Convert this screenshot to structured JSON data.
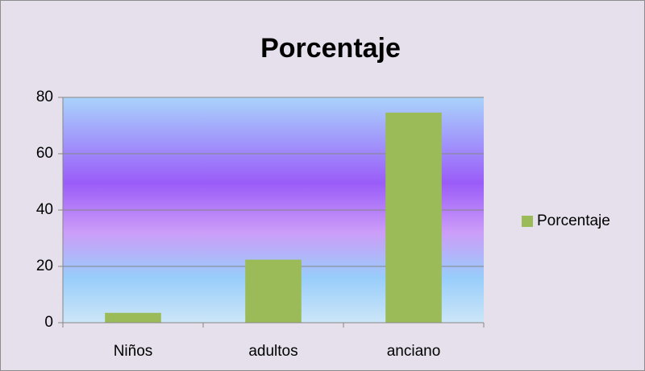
{
  "chart_data": {
    "type": "bar",
    "title": "Porcentaje",
    "categories": [
      "Niños",
      "adultos",
      "anciano"
    ],
    "series": [
      {
        "name": "Porcentaje",
        "color": "#9bbb59",
        "values": [
          3.5,
          22.4,
          74.6
        ]
      }
    ],
    "ylim": [
      0,
      80
    ],
    "yticks": [
      0,
      20,
      40,
      60,
      80
    ],
    "grid": true,
    "legend": "right"
  }
}
